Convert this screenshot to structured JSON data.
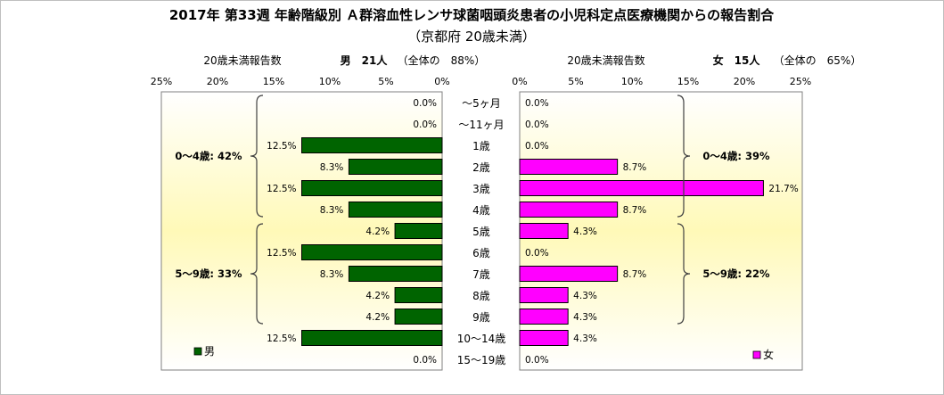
{
  "chart_data": {
    "type": "bar",
    "orientation": "horizontal-butterfly",
    "title": "2017年 第33週 年齢階級別 Ａ群溶血性レンサ球菌咽頭炎患者の小児科定点医療機関からの報告割合",
    "subtitle": "（京都府 20歳未満）",
    "categories": [
      "〜5ヶ月",
      "〜11ヶ月",
      "1歳",
      "2歳",
      "3歳",
      "4歳",
      "5歳",
      "6歳",
      "7歳",
      "8歳",
      "9歳",
      "10〜14歳",
      "15〜19歳"
    ],
    "series": [
      {
        "name": "男",
        "side": "left",
        "color": "#006400",
        "header_label": "20歳未満報告数",
        "header_count": "男　21人",
        "header_share": "（全体の　88%）",
        "value_labels": [
          "0.0%",
          "0.0%",
          "12.5%",
          "8.3%",
          "12.5%",
          "8.3%",
          "4.2%",
          "12.5%",
          "8.3%",
          "4.2%",
          "4.2%",
          "12.5%",
          "0.0%"
        ],
        "values": [
          0.0,
          0.0,
          12.5,
          8.3,
          12.5,
          8.3,
          4.2,
          12.5,
          8.3,
          4.2,
          4.2,
          12.5,
          0.0
        ],
        "groups": [
          {
            "label": "0〜4歳: 42%",
            "from": 0,
            "to": 5
          },
          {
            "label": "5〜9歳: 33%",
            "from": 6,
            "to": 10
          }
        ]
      },
      {
        "name": "女",
        "side": "right",
        "color": "#FF00FF",
        "header_label": "20歳未満報告数",
        "header_count": "女　15人",
        "header_share": "（全体の　65%）",
        "value_labels": [
          "0.0%",
          "0.0%",
          "0.0%",
          "8.7%",
          "21.7%",
          "8.7%",
          "4.3%",
          "0.0%",
          "8.7%",
          "4.3%",
          "4.3%",
          "4.3%",
          "0.0%"
        ],
        "values": [
          0.0,
          0.0,
          0.0,
          8.7,
          21.7,
          8.7,
          4.3,
          0.0,
          8.7,
          4.3,
          4.3,
          4.3,
          0.0
        ],
        "groups": [
          {
            "label": "0〜4歳: 39%",
            "from": 0,
            "to": 5
          },
          {
            "label": "5〜9歳: 22%",
            "from": 6,
            "to": 10
          }
        ]
      }
    ],
    "xlim": [
      0,
      25
    ],
    "left_ticks": [
      "25%",
      "20%",
      "15%",
      "10%",
      "5%",
      "0%"
    ],
    "right_ticks": [
      "0%",
      "5%",
      "10%",
      "15%",
      "20%",
      "25%"
    ],
    "grid": false,
    "legend": "bottom-left / bottom-right"
  }
}
